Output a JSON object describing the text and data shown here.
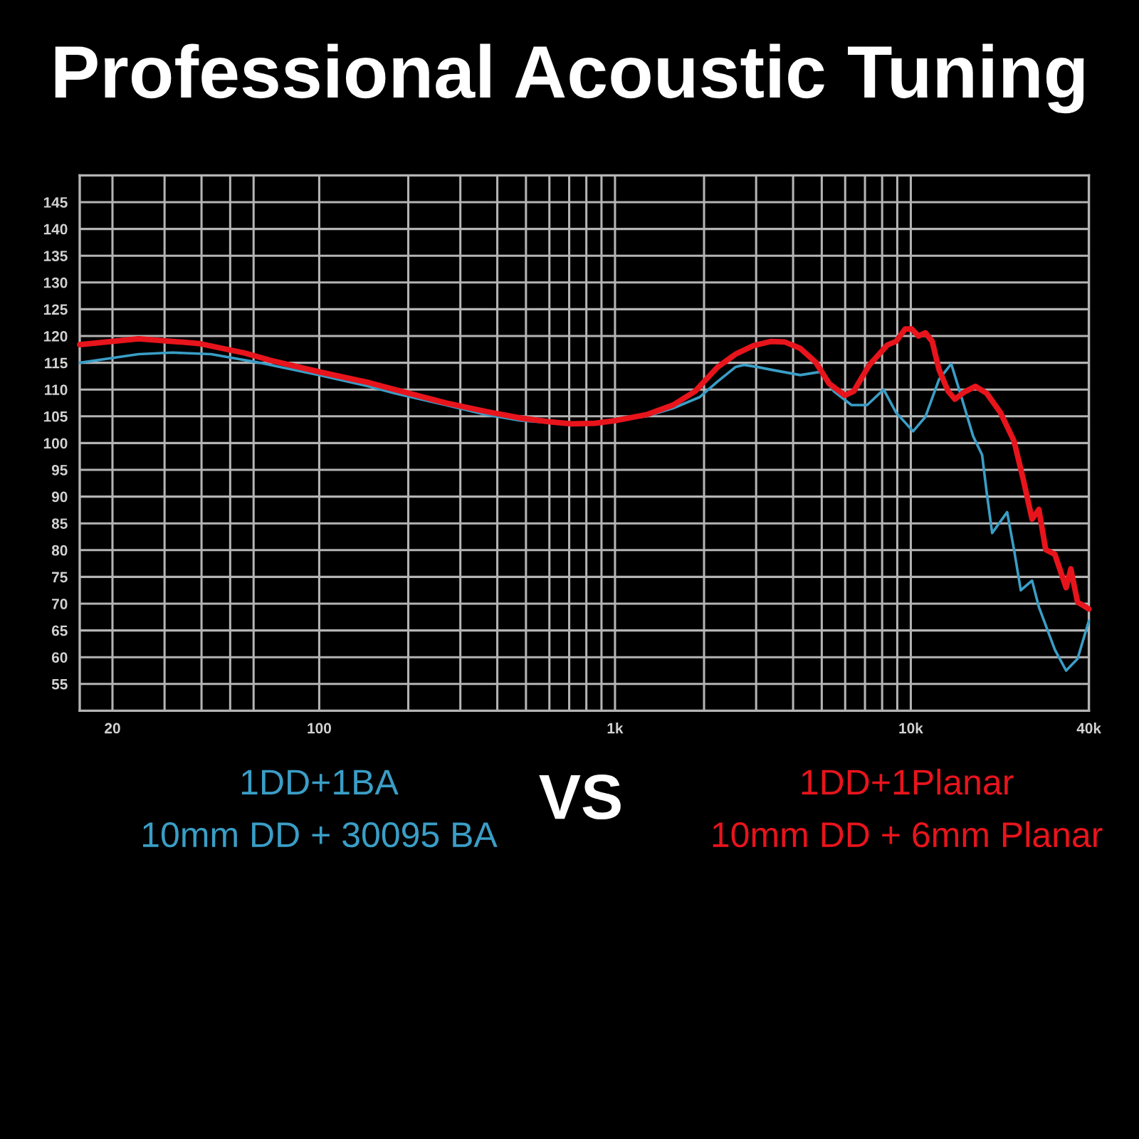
{
  "chart_data": {
    "type": "line",
    "title": "Professional Acoustic Tuning",
    "xlim": [
      15.5,
      40000
    ],
    "ylim": [
      50,
      150
    ],
    "log": "x",
    "grid": true,
    "legend": "bottom",
    "xticks": [
      {
        "value": 20,
        "label": "20"
      },
      {
        "value": 30,
        "label": null
      },
      {
        "value": 40,
        "label": null
      },
      {
        "value": 50,
        "label": null
      },
      {
        "value": 60,
        "label": null
      },
      {
        "value": 100,
        "label": "100"
      },
      {
        "value": 200,
        "label": null
      },
      {
        "value": 300,
        "label": null
      },
      {
        "value": 400,
        "label": null
      },
      {
        "value": 500,
        "label": null
      },
      {
        "value": 600,
        "label": null
      },
      {
        "value": 700,
        "label": null
      },
      {
        "value": 800,
        "label": null
      },
      {
        "value": 900,
        "label": null
      },
      {
        "value": 1000,
        "label": "1k"
      },
      {
        "value": 2000,
        "label": null
      },
      {
        "value": 3000,
        "label": null
      },
      {
        "value": 4000,
        "label": null
      },
      {
        "value": 5000,
        "label": null
      },
      {
        "value": 6000,
        "label": null
      },
      {
        "value": 7000,
        "label": null
      },
      {
        "value": 8000,
        "label": null
      },
      {
        "value": 9000,
        "label": null
      },
      {
        "value": 10000,
        "label": "10k"
      },
      {
        "value": 40000,
        "label": "40k"
      }
    ],
    "yticks": [
      55,
      60,
      65,
      70,
      75,
      80,
      85,
      90,
      95,
      100,
      105,
      110,
      115,
      120,
      125,
      130,
      135,
      140,
      145
    ],
    "annotations": [
      "VS"
    ],
    "series": [
      {
        "name": "1DD+1BA\n10mm DD + 30095 BA",
        "color": "#3a9ec6",
        "x": [
          15.5,
          24.5,
          31.9,
          43.1,
          62.9,
          100,
          147,
          180,
          268,
          366,
          478,
          713,
          1000,
          1276,
          1571,
          1936,
          2223,
          2554,
          2740,
          3039,
          3373,
          4229,
          4943,
          5486,
          6302,
          7120,
          8091,
          8918,
          10180,
          11200,
          12460,
          13700,
          14870,
          16240,
          17420,
          18060,
          18840,
          21170,
          22330,
          23540,
          25700,
          27100,
          30690,
          33500,
          36620,
          40000
        ],
        "values": [
          115.0,
          116.6,
          116.9,
          116.6,
          115.0,
          112.7,
          110.6,
          109.3,
          107.1,
          105.3,
          104.2,
          103.5,
          104.2,
          105.0,
          106.5,
          108.6,
          111.5,
          114.2,
          114.6,
          114.2,
          113.7,
          112.7,
          113.3,
          109.7,
          107.1,
          107.1,
          110.0,
          105.7,
          102.2,
          104.9,
          111.9,
          114.8,
          108.4,
          101.3,
          97.8,
          90.7,
          83.2,
          87.1,
          80.1,
          72.5,
          74.3,
          69.4,
          61.4,
          57.5,
          59.7,
          66.8
        ]
      },
      {
        "name": "1DD+1Planar\n10mm DD + 6mm Planar",
        "color": "#e8141c",
        "x": [
          15.5,
          24.5,
          31.9,
          39.2,
          56.1,
          67.8,
          100,
          147,
          180,
          268,
          366,
          478,
          596,
          713,
          853,
          1000,
          1276,
          1571,
          1868,
          2223,
          2554,
          2938,
          3373,
          3743,
          4229,
          4770,
          5297,
          5980,
          6415,
          7244,
          8323,
          8918,
          9567,
          10074,
          10620,
          11200,
          11810,
          12460,
          13370,
          14100,
          15130,
          16530,
          18060,
          20090,
          22330,
          23980,
          25700,
          27100,
          28580,
          30690,
          33500,
          34750,
          36620,
          40000
        ],
        "values": [
          118.4,
          119.5,
          119.0,
          118.6,
          116.8,
          115.5,
          113.3,
          111.3,
          110.0,
          107.5,
          105.9,
          104.7,
          104.0,
          103.6,
          103.7,
          104.2,
          105.3,
          107.1,
          109.7,
          114.2,
          116.6,
          118.2,
          119.0,
          118.9,
          117.7,
          115.1,
          111.1,
          108.9,
          109.7,
          114.6,
          118.3,
          119.0,
          121.3,
          121.3,
          120.0,
          120.6,
          119.0,
          113.7,
          109.7,
          108.2,
          109.5,
          110.6,
          109.3,
          105.7,
          100.4,
          93.3,
          85.8,
          87.6,
          80.1,
          79.2,
          73.0,
          76.5,
          70.3,
          69.0
        ]
      }
    ]
  }
}
